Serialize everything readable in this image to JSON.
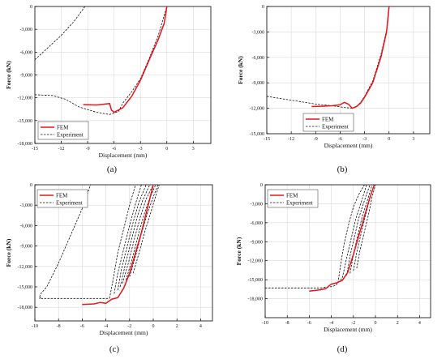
{
  "figure": {
    "background": "#ffffff",
    "colors": {
      "fem": "#e8141b",
      "experiment": "#111111",
      "grid": "#d9d9d9",
      "axis": "#000000"
    }
  },
  "chart_data": [
    {
      "type": "line",
      "label": "(a)",
      "xlabel": "Displacement (mm)",
      "ylabel": "Force (kN)",
      "xlim": [
        -15,
        5
      ],
      "ylim": [
        -18000,
        0
      ],
      "xticks": [
        -15,
        -12,
        -9,
        -6,
        -3,
        0,
        3
      ],
      "xtick_labels": [
        "-15",
        "-12",
        "-9",
        "-6",
        "-3",
        "0",
        "3"
      ],
      "yticks": [
        0,
        -3000,
        -6000,
        -9000,
        -12000,
        -15000,
        -18000
      ],
      "ytick_labels": [
        "0",
        "-3,000",
        "-6,000",
        "-9,000",
        "-12,000",
        "-15,000",
        "-18,000"
      ],
      "grid": true,
      "legend": {
        "position": "bottom-left",
        "entries": [
          "FEM",
          "Experiment"
        ]
      },
      "series": [
        {
          "name": "FEM",
          "style": "solid",
          "color": "#e8141b",
          "x": [
            -9.5,
            -8,
            -7.2,
            -6.5,
            -6.3,
            -6,
            -5,
            -4,
            -3,
            -2,
            -1,
            -0.3,
            0
          ],
          "y": [
            -12900,
            -12950,
            -12850,
            -12750,
            -13600,
            -13900,
            -13300,
            -11800,
            -9700,
            -7000,
            -4400,
            -2200,
            0
          ]
        },
        {
          "name": "Experiment",
          "style": "dashed",
          "color": "#111111",
          "x": [
            -15,
            -13.5,
            -12,
            -10.5,
            -9.3,
            -9.5
          ],
          "y": [
            -7000,
            -5400,
            -3800,
            -1900,
            0,
            0
          ]
        },
        {
          "name": "Experiment",
          "style": "dashed",
          "color": "#111111",
          "x": [
            -15,
            -13,
            -11.5,
            -10,
            -8,
            -6.5,
            -5.5,
            -5,
            -4,
            -3,
            -2,
            -1,
            0
          ],
          "y": [
            -11600,
            -11700,
            -12200,
            -13200,
            -13900,
            -14200,
            -13800,
            -12700,
            -11200,
            -9500,
            -6800,
            -3900,
            0
          ]
        }
      ]
    },
    {
      "type": "line",
      "label": "(b)",
      "xlabel": "Displacement (mm)",
      "ylabel": "Force (kN)",
      "xlim": [
        -15,
        5
      ],
      "ylim": [
        -15000,
        0
      ],
      "xticks": [
        -15,
        -12,
        -9,
        -6,
        -3,
        0,
        3
      ],
      "xtick_labels": [
        "-15",
        "-12",
        "-9",
        "-6",
        "-3",
        "0",
        "3"
      ],
      "yticks": [
        0,
        -3000,
        -6000,
        -9000,
        -12000,
        -15000
      ],
      "ytick_labels": [
        "0",
        "-3,000",
        "-6,000",
        "-9,000",
        "-12,000",
        "-15,000"
      ],
      "grid": true,
      "legend": {
        "position": "bottom-center",
        "entries": [
          "FEM",
          "Experiment"
        ]
      },
      "series": [
        {
          "name": "FEM",
          "style": "solid",
          "color": "#e8141b",
          "x": [
            -9.5,
            -8,
            -7,
            -6,
            -5.5,
            -5,
            -4.5,
            -4,
            -3.5,
            -3,
            -2,
            -1,
            -0.3,
            0
          ],
          "y": [
            -11800,
            -11750,
            -11700,
            -11600,
            -11300,
            -11500,
            -12000,
            -11800,
            -11400,
            -10700,
            -9000,
            -6000,
            -3000,
            0
          ]
        },
        {
          "name": "Experiment",
          "style": "dashed",
          "color": "#111111",
          "x": [
            -15,
            -13,
            -11,
            -9,
            -7,
            -5.5,
            -4.5,
            -4,
            -3.5,
            -3,
            -2,
            -1,
            -0.3,
            0
          ],
          "y": [
            -10600,
            -10900,
            -11200,
            -11500,
            -11700,
            -11900,
            -12000,
            -11800,
            -11300,
            -10600,
            -8800,
            -5700,
            -2800,
            0
          ]
        }
      ]
    },
    {
      "type": "line",
      "label": "(c)",
      "xlabel": "Displacement (mm)",
      "ylabel": "Force (kN)",
      "xlim": [
        -10,
        5
      ],
      "ylim": [
        -20000,
        0
      ],
      "xticks": [
        -10,
        -8,
        -6,
        -4,
        -2,
        0,
        2,
        4
      ],
      "xtick_labels": [
        "-10",
        "-8",
        "-6",
        "-4",
        "-2",
        "0",
        "2",
        "4"
      ],
      "yticks": [
        0,
        -3000,
        -6000,
        -9000,
        -12000,
        -15000,
        -18000
      ],
      "ytick_labels": [
        "0",
        "-3,000",
        "-6,000",
        "-9,000",
        "-12,000",
        "-15,000",
        "-18,000"
      ],
      "grid": true,
      "legend": {
        "position": "top-left",
        "entries": [
          "FEM",
          "Experiment"
        ]
      },
      "series": [
        {
          "name": "FEM",
          "style": "solid",
          "color": "#e8141b",
          "x": [
            -6,
            -5,
            -4.5,
            -4,
            -3.5,
            -3,
            -2.5,
            -2,
            -1.5,
            -1,
            -0.5,
            0
          ],
          "y": [
            -17600,
            -17500,
            -17300,
            -17400,
            -16800,
            -16600,
            -15200,
            -13000,
            -10000,
            -7000,
            -3500,
            0
          ]
        },
        {
          "name": "Experiment",
          "style": "dashed",
          "color": "#111111",
          "x": [
            -9.5,
            -9.6,
            -9,
            -8,
            -7,
            -6,
            -5,
            -4.5,
            -4,
            -3.7
          ],
          "y": [
            -16500,
            -16700,
            -16700,
            -16700,
            -16700,
            -16700,
            -16700,
            -16700,
            -16700,
            -16700
          ]
        },
        {
          "name": "Experiment",
          "style": "dashed",
          "color": "#111111",
          "x": [
            -9.6,
            -9.5,
            -9,
            -8,
            -7,
            -6,
            -5.3
          ],
          "y": [
            -16500,
            -16000,
            -15000,
            -11500,
            -7500,
            -3500,
            0
          ]
        },
        {
          "name": "Experiment",
          "style": "dashed",
          "color": "#111111",
          "x": [
            -3.7,
            -3.4,
            -3,
            -2.5,
            -2,
            -1.5
          ],
          "y": [
            -16700,
            -14000,
            -10000,
            -6500,
            -3000,
            0
          ]
        },
        {
          "name": "Experiment",
          "style": "dashed",
          "color": "#111111",
          "x": [
            -3.3,
            -3,
            -2.5,
            -2,
            -1.5,
            -1
          ],
          "y": [
            -16000,
            -13000,
            -9500,
            -6000,
            -2800,
            0
          ]
        },
        {
          "name": "Experiment",
          "style": "dashed",
          "color": "#111111",
          "x": [
            -3,
            -2.7,
            -2.2,
            -1.7,
            -1.2,
            -0.6
          ],
          "y": [
            -15500,
            -12500,
            -9000,
            -5500,
            -2500,
            0
          ]
        },
        {
          "name": "Experiment",
          "style": "dashed",
          "color": "#111111",
          "x": [
            -2.8,
            -2.4,
            -1.9,
            -1.4,
            -0.9,
            -0.3
          ],
          "y": [
            -15000,
            -12000,
            -8500,
            -5000,
            -2300,
            0
          ]
        },
        {
          "name": "Experiment",
          "style": "dashed",
          "color": "#111111",
          "x": [
            -2.6,
            -2.1,
            -1.6,
            -1.1,
            -0.6,
            0
          ],
          "y": [
            -14500,
            -11500,
            -8000,
            -4800,
            -2100,
            0
          ]
        },
        {
          "name": "Experiment",
          "style": "dashed",
          "color": "#111111",
          "x": [
            -2.3,
            -1.8,
            -1.3,
            -0.8,
            -0.3,
            0.2
          ],
          "y": [
            -14000,
            -11000,
            -7600,
            -4500,
            -2000,
            0
          ]
        },
        {
          "name": "Experiment",
          "style": "dashed",
          "color": "#111111",
          "x": [
            -2,
            -1.5,
            -1,
            -0.5,
            0,
            0.4
          ],
          "y": [
            -13500,
            -10500,
            -7200,
            -4200,
            -1800,
            0
          ]
        },
        {
          "name": "Experiment",
          "style": "dashed",
          "color": "#111111",
          "x": [
            -1.7,
            -1.2,
            -0.7,
            -0.2,
            0.2,
            0.5
          ],
          "y": [
            -13000,
            -10000,
            -6800,
            -4000,
            -1700,
            0
          ]
        }
      ]
    },
    {
      "type": "line",
      "label": "(d)",
      "xlabel": "Displacement (mm)",
      "ylabel": "Force (kN)",
      "xlim": [
        -10,
        5
      ],
      "ylim": [
        -21000,
        0
      ],
      "xticks": [
        -10,
        -8,
        -6,
        -4,
        -2,
        0,
        2,
        4
      ],
      "xtick_labels": [
        "-10",
        "-8",
        "-6",
        "-4",
        "-2",
        "0",
        "2",
        "4"
      ],
      "yticks": [
        0,
        -3000,
        -6000,
        -9000,
        -12000,
        -15000,
        -18000
      ],
      "ytick_labels": [
        "0",
        "-3,000",
        "-6,000",
        "-9,000",
        "-12,000",
        "-15,000",
        "-18,000"
      ],
      "grid": true,
      "legend": {
        "position": "top-left",
        "entries": [
          "FEM",
          "Experiment"
        ]
      },
      "series": [
        {
          "name": "FEM",
          "style": "solid",
          "color": "#e8141b",
          "x": [
            -6,
            -5,
            -4.5,
            -4,
            -3.5,
            -3,
            -2.5,
            -2,
            -1.5,
            -1,
            -0.5,
            -0.1
          ],
          "y": [
            -16800,
            -16600,
            -16400,
            -15700,
            -15500,
            -15100,
            -13800,
            -11000,
            -8000,
            -5000,
            -2000,
            0
          ]
        },
        {
          "name": "Experiment",
          "style": "dashed",
          "color": "#111111",
          "x": [
            -10,
            -9,
            -7,
            -5,
            -4,
            -3.6,
            -3.4,
            -3
          ],
          "y": [
            -16300,
            -16300,
            -16300,
            -16300,
            -16100,
            -15900,
            -15500,
            -14700
          ]
        },
        {
          "name": "Experiment",
          "style": "dashed",
          "color": "#111111",
          "x": [
            -3.4,
            -3.1,
            -2.8,
            -2.4,
            -2,
            -1.5,
            -1
          ],
          "y": [
            -15500,
            -12000,
            -9000,
            -6000,
            -3500,
            -1500,
            0
          ]
        },
        {
          "name": "Experiment",
          "style": "dashed",
          "color": "#111111",
          "x": [
            -3,
            -2.6,
            -2.2,
            -1.8,
            -1.3,
            -0.8
          ],
          "y": [
            -14700,
            -11500,
            -8500,
            -5500,
            -2800,
            0
          ]
        },
        {
          "name": "Experiment",
          "style": "dashed",
          "color": "#111111",
          "x": [
            -2.6,
            -2.3,
            -1.9,
            -1.5,
            -1,
            -0.5
          ],
          "y": [
            -14300,
            -11200,
            -8200,
            -5200,
            -2500,
            0
          ]
        },
        {
          "name": "Experiment",
          "style": "dashed",
          "color": "#111111",
          "x": [
            -2.3,
            -2,
            -1.6,
            -1.2,
            -0.7,
            -0.3
          ],
          "y": [
            -14000,
            -11000,
            -8000,
            -5000,
            -2300,
            0
          ]
        },
        {
          "name": "Experiment",
          "style": "dashed",
          "color": "#111111",
          "x": [
            -2,
            -1.7,
            -1.3,
            -0.9,
            -0.5,
            -0.1
          ],
          "y": [
            -13600,
            -10700,
            -7700,
            -4800,
            -2100,
            0
          ]
        },
        {
          "name": "Experiment",
          "style": "dashed",
          "color": "#111111",
          "x": [
            -1.7,
            -1.4,
            -1,
            -0.6,
            -0.3,
            0
          ],
          "y": [
            -13200,
            -10300,
            -7400,
            -4500,
            -1900,
            0
          ]
        }
      ]
    }
  ]
}
